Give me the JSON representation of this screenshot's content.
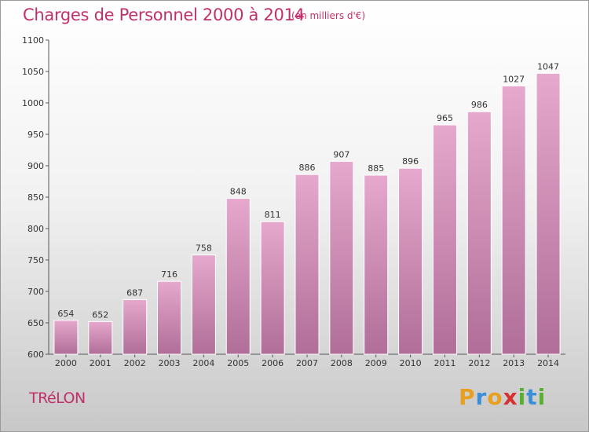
{
  "header": {
    "title": "Charges de Personnel 2000 à 2014",
    "subtitle": "(en milliers d'€)"
  },
  "footer": {
    "location": "TRéLON",
    "brand_letters": [
      "P",
      "r",
      "o",
      "x",
      "i",
      "t",
      "i"
    ],
    "brand_colors": [
      "#e8a020",
      "#3a8fd8",
      "#e8a020",
      "#d83030",
      "#58b030",
      "#3a8fd8",
      "#58b030"
    ]
  },
  "colors": {
    "accent": "#c0306a",
    "bar_top": "#e6a8cc",
    "bar_bottom": "#b06e98",
    "axis": "#555555"
  },
  "chart_data": {
    "type": "bar",
    "categories": [
      "2000",
      "2001",
      "2002",
      "2003",
      "2004",
      "2005",
      "2006",
      "2007",
      "2008",
      "2009",
      "2010",
      "2011",
      "2012",
      "2013",
      "2014"
    ],
    "values": [
      654,
      652,
      687,
      716,
      758,
      848,
      811,
      886,
      907,
      885,
      896,
      965,
      986,
      1027,
      1047
    ],
    "yticks": [
      600,
      650,
      700,
      750,
      800,
      850,
      900,
      950,
      1000,
      1050,
      1100
    ],
    "ylim": [
      600,
      1100
    ],
    "xlabel": "",
    "ylabel": "",
    "grid": false,
    "data_labels": true
  }
}
